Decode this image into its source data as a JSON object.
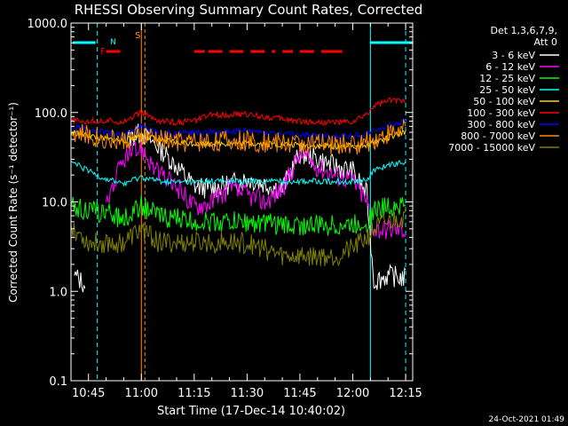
{
  "chart_data": {
    "type": "line",
    "title": "RHESSI Observing Summary Count Rates, Corrected",
    "xlabel": "Start Time (17-Dec-14 10:40:02)",
    "ylabel": "Corrected Count Rate (s⁻¹ detector⁻¹)",
    "y_scale": "log",
    "ylim": [
      0.1,
      1000.0
    ],
    "xlim": [
      "10:40",
      "12:17"
    ],
    "x_ticks": [
      "10:45",
      "11:00",
      "11:15",
      "11:30",
      "11:45",
      "12:00",
      "12:15"
    ],
    "y_ticks": [
      "0.1",
      "1.0",
      "10.0",
      "100.0",
      "1000.0"
    ],
    "legend_header": [
      "Det 1,3,6,7,9,",
      "Att 0"
    ],
    "legend_position": "right",
    "flags": {
      "F": "F",
      "N": "N",
      "S": "S"
    },
    "footer_date": "24-Oct-2021 01:49",
    "series": [
      {
        "name": "3 - 6 keV",
        "color": "#ffffff",
        "x": [
          "10:41",
          "10:44",
          "10:50",
          "10:56",
          "11:00",
          "11:05",
          "11:10",
          "11:15",
          "11:20",
          "11:30",
          "11:40",
          "11:45",
          "11:50",
          "11:55",
          "12:00",
          "12:04",
          "12:06",
          "12:10",
          "12:15"
        ],
        "y": [
          1.5,
          1.2,
          null,
          50,
          60,
          40,
          25,
          15,
          14,
          18,
          14,
          35,
          30,
          25,
          22,
          12,
          1.3,
          1.5,
          1.4
        ]
      },
      {
        "name": "6 - 12 keV",
        "color": "#ff00ff",
        "x": [
          "10:50",
          "10:55",
          "11:00",
          "11:05",
          "11:10",
          "11:15",
          "11:20",
          "11:25",
          "11:30",
          "11:35",
          "11:40",
          "11:45",
          "11:50",
          "11:55",
          "12:00",
          "12:04",
          "12:06",
          "12:10",
          "12:15"
        ],
        "y": [
          10,
          30,
          40,
          20,
          15,
          9,
          10,
          14,
          12,
          10,
          14,
          35,
          25,
          20,
          18,
          10,
          5,
          5,
          5
        ]
      },
      {
        "name": "12 - 25 keV",
        "color": "#00ff00",
        "x": [
          "10:40",
          "10:45",
          "10:50",
          "10:55",
          "11:00",
          "11:05",
          "11:10",
          "11:15",
          "11:20",
          "11:30",
          "11:40",
          "11:45",
          "11:50",
          "11:55",
          "12:00",
          "12:04",
          "12:06",
          "12:10",
          "12:15"
        ],
        "y": [
          9,
          8,
          7.5,
          6.5,
          9,
          7,
          6.5,
          6,
          6,
          6,
          5.5,
          5.5,
          5.5,
          5.5,
          5.5,
          6,
          8,
          9,
          9.5
        ]
      },
      {
        "name": "25 - 50 keV",
        "color": "#00ffff",
        "x": [
          "10:40",
          "10:45",
          "10:50",
          "10:55",
          "11:00",
          "11:05",
          "11:10",
          "11:15",
          "11:20",
          "11:30",
          "11:40",
          "11:45",
          "11:50",
          "11:55",
          "12:00",
          "12:04",
          "12:06",
          "12:10",
          "12:15"
        ],
        "y": [
          28,
          22,
          18,
          16,
          19,
          17,
          16.5,
          16.5,
          17,
          17,
          17,
          17,
          17,
          17,
          17,
          18,
          22,
          26,
          28
        ]
      },
      {
        "name": "50 - 100 keV",
        "color": "#ffd700",
        "x": [
          "10:40",
          "10:45",
          "10:50",
          "10:55",
          "11:00",
          "11:05",
          "11:10",
          "11:15",
          "11:20",
          "11:30",
          "11:40",
          "11:45",
          "11:50",
          "11:55",
          "12:00",
          "12:04",
          "12:06",
          "12:10",
          "12:15"
        ],
        "y": [
          60,
          55,
          50,
          48,
          55,
          50,
          46,
          45,
          45,
          45,
          44,
          43,
          42,
          42,
          42,
          44,
          46,
          52,
          60
        ]
      },
      {
        "name": "100 - 300 keV",
        "color": "#ff0000",
        "x": [
          "10:40",
          "10:45",
          "10:50",
          "10:55",
          "11:00",
          "11:05",
          "11:10",
          "11:15",
          "11:20",
          "11:30",
          "11:40",
          "11:45",
          "11:50",
          "11:55",
          "12:00",
          "12:04",
          "12:06",
          "12:10",
          "12:15"
        ],
        "y": [
          80,
          80,
          80,
          80,
          100,
          80,
          78,
          80,
          95,
          95,
          85,
          80,
          78,
          78,
          78,
          95,
          120,
          135,
          140
        ]
      },
      {
        "name": "300 - 800 keV",
        "color": "#0000ff",
        "x": [
          "10:40",
          "10:45",
          "10:50",
          "10:55",
          "11:00",
          "11:05",
          "11:10",
          "11:15",
          "11:20",
          "11:30",
          "11:40",
          "11:45",
          "11:50",
          "11:55",
          "12:00",
          "12:04",
          "12:06",
          "12:10",
          "12:15"
        ],
        "y": [
          70,
          65,
          60,
          55,
          70,
          60,
          58,
          60,
          60,
          62,
          58,
          56,
          55,
          55,
          55,
          58,
          62,
          72,
          80
        ]
      },
      {
        "name": "800 - 7000 keV",
        "color": "#ff8c00",
        "x": [
          "10:40",
          "10:45",
          "10:50",
          "10:55",
          "11:00",
          "11:05",
          "11:10",
          "11:15",
          "11:20",
          "11:30",
          "11:40",
          "11:45",
          "11:50",
          "11:55",
          "12:00",
          "12:04",
          "12:06",
          "12:10",
          "12:15"
        ],
        "y": [
          60,
          55,
          50,
          48,
          55,
          50,
          47,
          47,
          48,
          48,
          46,
          45,
          44,
          44,
          44,
          46,
          50,
          58,
          65
        ]
      },
      {
        "name": "7000 - 15000 keV",
        "color": "#808000",
        "x": [
          "10:40",
          "10:45",
          "10:50",
          "10:55",
          "11:00",
          "11:05",
          "11:10",
          "11:15",
          "11:20",
          "11:30",
          "11:40",
          "11:45",
          "11:50",
          "11:55",
          "12:00",
          "12:04",
          "12:06",
          "12:10",
          "12:15"
        ],
        "y": [
          5.5,
          3.5,
          3.5,
          3.5,
          5,
          3.5,
          3.5,
          3.5,
          3.5,
          3.5,
          2.5,
          2.5,
          2.5,
          2.5,
          3,
          4,
          5,
          6,
          7
        ]
      }
    ]
  }
}
